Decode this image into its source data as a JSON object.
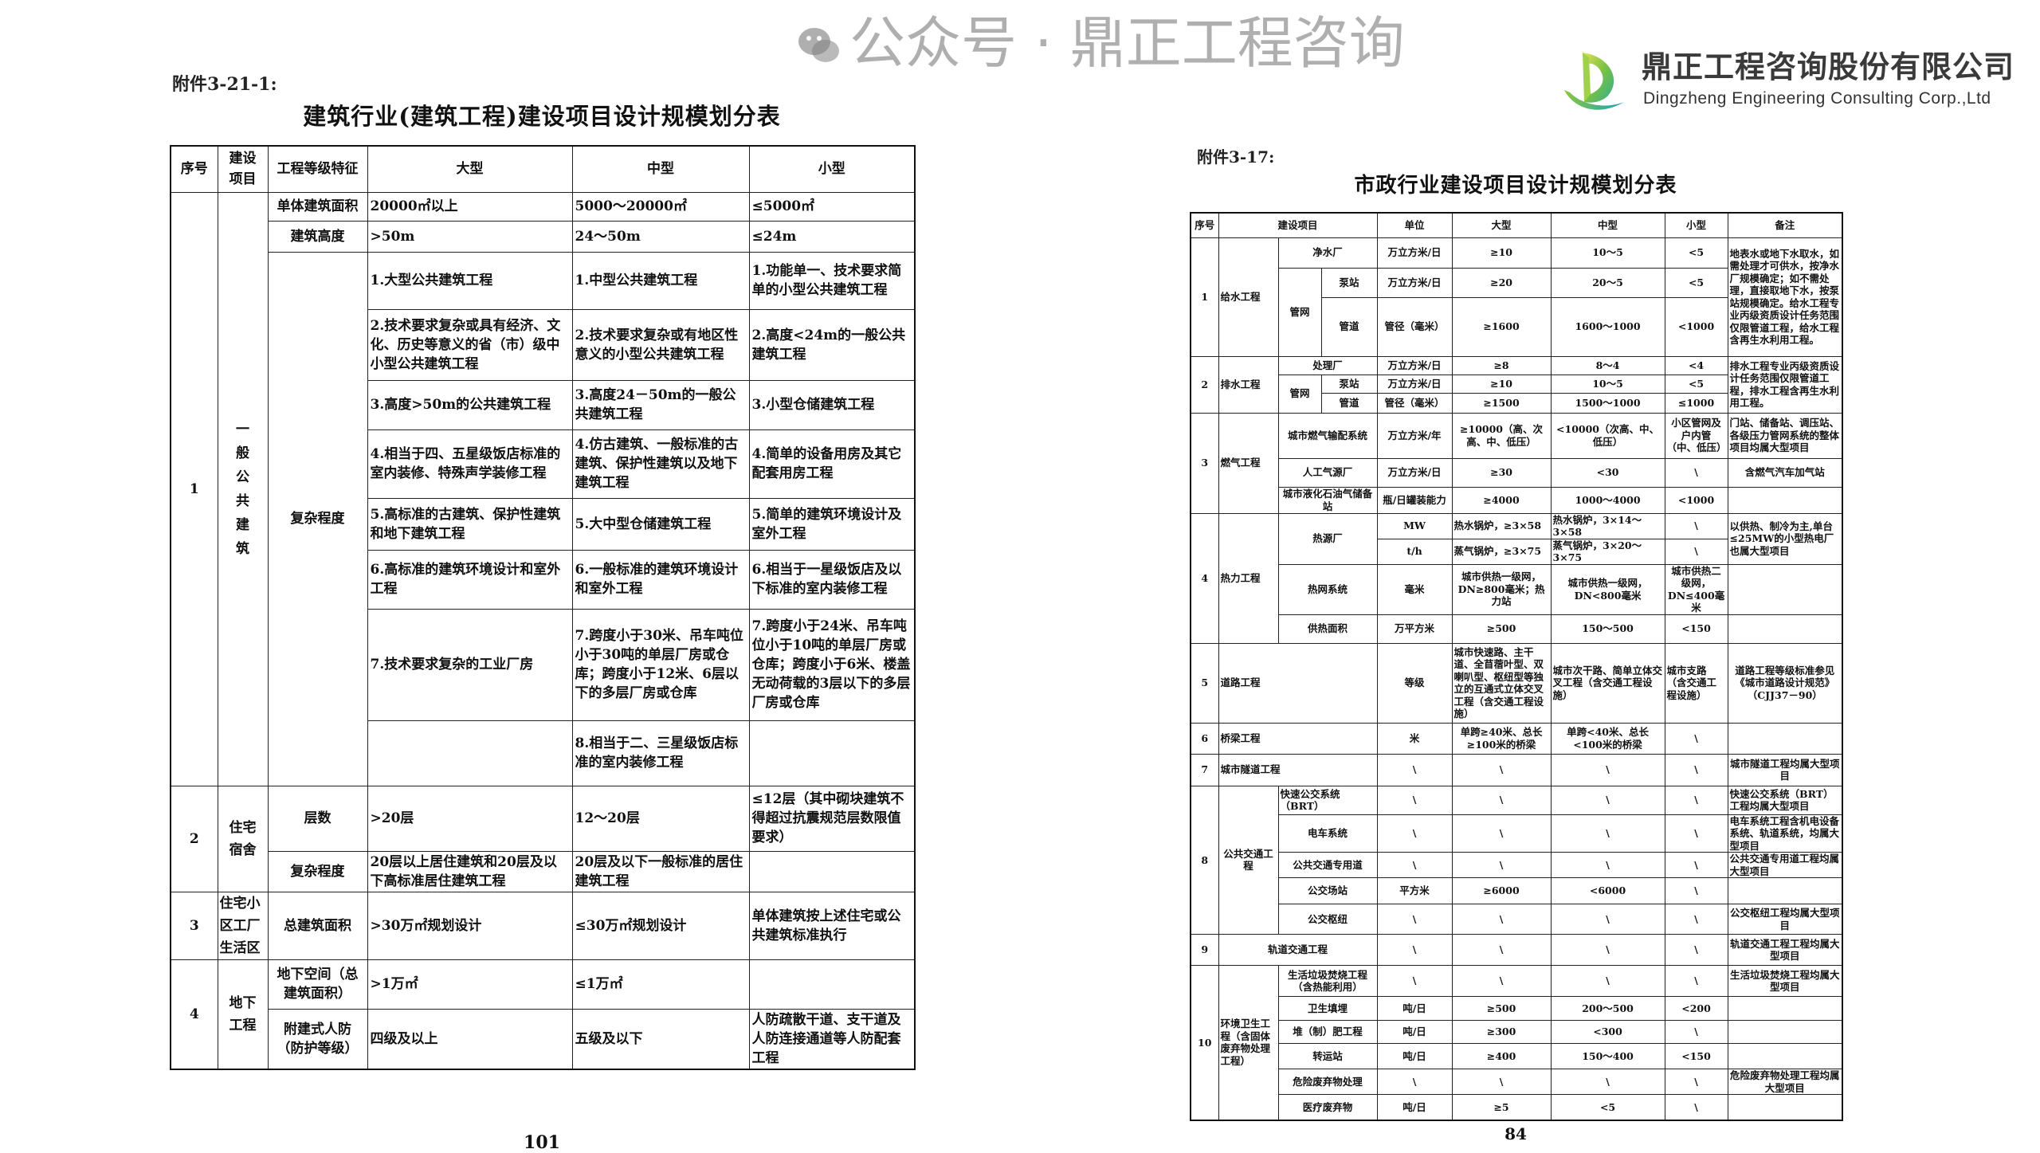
{
  "logo": {
    "name_cn": "鼎正工程咨询股份有限公司",
    "name_en": "Dingzheng Engineering Consulting Corp.,Ltd",
    "colors": {
      "green": "#8cc63f",
      "teal": "#1aa3b8"
    }
  },
  "watermark": {
    "text": "公众号 · 鼎正工程咨询",
    "icon": "wechat-icon"
  },
  "left": {
    "attachment": "附件3-21-1:",
    "title": "建筑行业(建筑工程)建设项目设计规模划分表",
    "headers": [
      "序号",
      "建设项目",
      "工程等级特征",
      "大型",
      "中型",
      "小型"
    ],
    "groups": [
      {
        "no": "1",
        "name": "一般公共建筑",
        "rows": [
          {
            "feature": "单体建筑面积",
            "large": "20000㎡以上",
            "medium": "5000～20000㎡",
            "small": "≤5000㎡"
          },
          {
            "feature": "建筑高度",
            "large": ">50m",
            "medium": "24～50m",
            "small": "≤24m"
          },
          {
            "feature": "复杂程度",
            "large": "1.大型公共建筑工程",
            "medium": "1.中型公共建筑工程",
            "small": "1.功能单一、技术要求简单的小型公共建筑工程"
          },
          {
            "large": "2.技术要求复杂或具有经济、文化、历史等意义的省（市）级中小型公共建筑工程",
            "medium": "2.技术要求复杂或有地区性意义的小型公共建筑工程",
            "small": "2.高度<24m的一般公共建筑工程"
          },
          {
            "large": "3.高度>50m的公共建筑工程",
            "medium": "3.高度24－50m的一般公共建筑工程",
            "small": "3.小型仓储建筑工程"
          },
          {
            "large": "4.相当于四、五星级饭店标准的室内装修、特殊声学装修工程",
            "medium": "4.仿古建筑、一般标准的古建筑、保护性建筑以及地下建筑工程",
            "small": "4.简单的设备用房及其它配套用房工程"
          },
          {
            "large": "5.高标准的古建筑、保护性建筑和地下建筑工程",
            "medium": "5.大中型仓储建筑工程",
            "small": "5.简单的建筑环境设计及室外工程"
          },
          {
            "large": "6.高标准的建筑环境设计和室外工程",
            "medium": "6.一般标准的建筑环境设计和室外工程",
            "small": "6.相当于一星级饭店及以下标准的室内装修工程"
          },
          {
            "large": "7.技术要求复杂的工业厂房",
            "medium": "7.跨度小于30米、吊车吨位小于30吨的单层厂房或仓库；跨度小于12米、6层以下的多层厂房或仓库",
            "small": "7.跨度小于24米、吊车吨位小于10吨的单层厂房或仓库；跨度小于6米、楼盖无动荷载的3层以下的多层厂房或仓库"
          },
          {
            "large": "",
            "medium": "8.相当于二、三星级饭店标准的室内装修工程",
            "small": ""
          }
        ]
      },
      {
        "no": "2",
        "name": "住宅宿舍",
        "rows": [
          {
            "feature": "层数",
            "large": ">20层",
            "medium": "12～20层",
            "small": "≤12层（其中砌块建筑不得超过抗震规范层数限值要求）"
          },
          {
            "feature": "复杂程度",
            "large": "20层以上居住建筑和20层及以下高标准居住建筑工程",
            "medium": "20层及以下一般标准的居住建筑工程",
            "small": ""
          }
        ]
      },
      {
        "no": "3",
        "name": "住宅小区工厂生活区",
        "rows": [
          {
            "feature": "总建筑面积",
            "large": ">30万㎡规划设计",
            "medium": "≤30万㎡规划设计",
            "small": "单体建筑按上述住宅或公共建筑标准执行"
          }
        ]
      },
      {
        "no": "4",
        "name": "地下工程",
        "rows": [
          {
            "feature": "地下空间（总建筑面积）",
            "large": ">1万㎡",
            "medium": "≤1万㎡",
            "small": ""
          },
          {
            "feature": "附建式人防（防护等级）",
            "large": "四级及以上",
            "medium": "五级及以下",
            "small": "人防疏散干道、支干道及人防连接通道等人防配套工程"
          }
        ]
      }
    ],
    "page": "101"
  },
  "right": {
    "attachment": "附件3-17:",
    "title": "市政行业建设项目设计规模划分表",
    "headers": [
      "序号",
      "建设项目",
      "单位",
      "大型",
      "中型",
      "小型",
      "备注"
    ],
    "rows": [
      {
        "no": "1",
        "project": "给水工程",
        "item": "净水厂",
        "unit": "万立方米/日",
        "large": "≥10",
        "medium": "10～5",
        "small": "<5",
        "note": "地表水或地下水取水，如需处理才可供水，按净水厂规模确定；如不需处理，直接取地下水，按泵站规模确定。给水工程专业丙级资质设计任务范围仅限管道工程，给水工程含再生水利用工程。"
      },
      {
        "sub": "管网",
        "item": "泵站",
        "unit": "万立方米/日",
        "large": "≥20",
        "medium": "20～5",
        "small": "<5"
      },
      {
        "item": "管道",
        "unit": "管径（毫米）",
        "large": "≥1600",
        "medium": "1600～1000",
        "small": "<1000"
      },
      {
        "no": "2",
        "project": "排水工程",
        "item": "处理厂",
        "unit": "万立方米/日",
        "large": "≥8",
        "medium": "8～4",
        "small": "<4",
        "note": "排水工程专业丙级资质设计任务范围仅限管道工程，排水工程含再生水利用工程。"
      },
      {
        "sub": "管网",
        "item": "泵站",
        "unit": "万立方米/日",
        "large": "≥10",
        "medium": "10～5",
        "small": "<5"
      },
      {
        "item": "管道",
        "unit": "管径（毫米）",
        "large": "≥1500",
        "medium": "1500～1000",
        "small": "≤1000"
      },
      {
        "no": "3",
        "project": "燃气工程",
        "item": "城市燃气输配系统",
        "unit": "万立方米/年",
        "large": "≥10000（高、次高、中、低压）",
        "medium": "<10000（次高、中、低压）",
        "small": "小区管网及户内管（中、低压）",
        "note": "门站、储备站、调压站、各级压力管网系统的整体项目均属大型项目"
      },
      {
        "item": "人工气源厂",
        "unit": "万立方米/日",
        "large": "≥30",
        "medium": "<30",
        "small": "\\",
        "note": "含燃气汽车加气站"
      },
      {
        "item": "城市液化石油气储备站",
        "unit": "瓶/日罐装能力",
        "large": "≥4000",
        "medium": "1000～4000",
        "small": "<1000",
        "note": ""
      },
      {
        "no": "4",
        "project": "热力工程",
        "item": "热源厂",
        "unit": "MW",
        "large": "热水锅炉，≥3×58",
        "medium": "热水锅炉，3×14～3×58",
        "small": "\\",
        "note": "以供热、制冷为主,单台≤25MW的小型热电厂也属大型项目"
      },
      {
        "unit": "t/h",
        "large": "蒸气锅炉，≥3×75",
        "medium": "蒸气锅炉，3×20～3×75",
        "small": "\\"
      },
      {
        "item": "热网系统",
        "unit": "毫米",
        "large": "城市供热一级网，DN≥800毫米；热力站",
        "medium": "城市供热一级网，DN<800毫米",
        "small": "城市供热二级网，DN≤400毫米",
        "note": ""
      },
      {
        "item": "供热面积",
        "unit": "万平方米",
        "large": "≥500",
        "medium": "150～500",
        "small": "<150",
        "note": ""
      },
      {
        "no": "5",
        "project": "道路工程",
        "unit": "等级",
        "large": "城市快速路、主干道、全苜蓿叶型、双喇叭型、枢纽型等独立的互通式立体交叉工程（含交通工程设施）",
        "medium": "城市次干路、简单立体交叉工程（含交通工程设施）",
        "small": "城市支路（含交通工程设施）",
        "note": "道路工程等级标准参见《城市道路设计规范》（CJJ37－90）"
      },
      {
        "no": "6",
        "project": "桥梁工程",
        "unit": "米",
        "large": "单跨≥40米、总长≥100米的桥梁",
        "medium": "单跨<40米、总长<100米的桥梁",
        "small": "\\",
        "note": ""
      },
      {
        "no": "7",
        "project": "城市隧道工程",
        "unit": "\\",
        "large": "\\",
        "medium": "\\",
        "small": "\\",
        "note": "城市隧道工程均属大型项目"
      },
      {
        "no": "8",
        "project": "公共交通工程",
        "item": "快速公交系统（BRT）",
        "unit": "\\",
        "large": "\\",
        "medium": "\\",
        "small": "\\",
        "note": "快速公交系统（BRT）工程均属大型项目"
      },
      {
        "item": "电车系统",
        "unit": "\\",
        "large": "\\",
        "medium": "\\",
        "small": "\\",
        "note": "电车系统工程含机电设备系统、轨道系统，均属大型项目"
      },
      {
        "item": "公共交通专用道",
        "unit": "\\",
        "large": "\\",
        "medium": "\\",
        "small": "\\",
        "note": "公共交通专用道工程均属大型项目"
      },
      {
        "item": "公交场站",
        "unit": "平方米",
        "large": "≥6000",
        "medium": "<6000",
        "small": "\\",
        "note": ""
      },
      {
        "item": "公交枢纽",
        "unit": "\\",
        "large": "\\",
        "medium": "\\",
        "small": "\\",
        "note": "公交枢纽工程均属大型项目"
      },
      {
        "no": "9",
        "project": "轨道交通工程",
        "unit": "\\",
        "large": "\\",
        "medium": "\\",
        "small": "\\",
        "note": "轨道交通工程工程均属大型项目"
      },
      {
        "no": "10",
        "project": "环境卫生工程（含固体废弃物处理工程）",
        "item": "生活垃圾焚烧工程（含热能利用）",
        "unit": "\\",
        "large": "\\",
        "medium": "\\",
        "small": "\\",
        "note": "生活垃圾焚烧工程均属大型项目"
      },
      {
        "item": "卫生填埋",
        "unit": "吨/日",
        "large": "≥500",
        "medium": "200～500",
        "small": "<200",
        "note": ""
      },
      {
        "item": "堆（制）肥工程",
        "unit": "吨/日",
        "large": "≥300",
        "medium": "<300",
        "small": "\\",
        "note": ""
      },
      {
        "item": "转运站",
        "unit": "吨/日",
        "large": "≥400",
        "medium": "150～400",
        "small": "<150",
        "note": ""
      },
      {
        "item": "危险废弃物处理",
        "unit": "\\",
        "large": "\\",
        "medium": "\\",
        "small": "\\",
        "note": "危险废弃物处理工程均属大型项目"
      },
      {
        "item": "医疗废弃物",
        "unit": "吨/日",
        "large": "≥5",
        "medium": "<5",
        "small": "\\",
        "note": ""
      }
    ],
    "page": "84"
  }
}
